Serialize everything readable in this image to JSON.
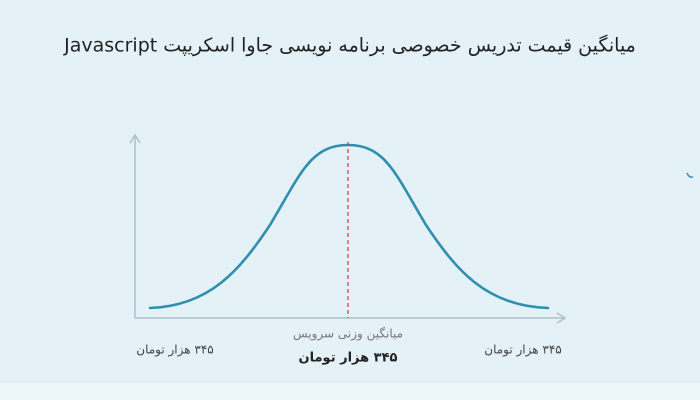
{
  "header": {
    "title": "میانگین قیمت تدریس خصوصی برنامه نویسی جاوا اسکریپت Javascript"
  },
  "curve": {
    "left_label": "۳۴۵ هزار تومان",
    "right_label": "۳۴۵ هزار تومان",
    "center_caption": "میانگین وزنی سرویس",
    "center_value": "۳۴۵ هزار تومان"
  }
}
